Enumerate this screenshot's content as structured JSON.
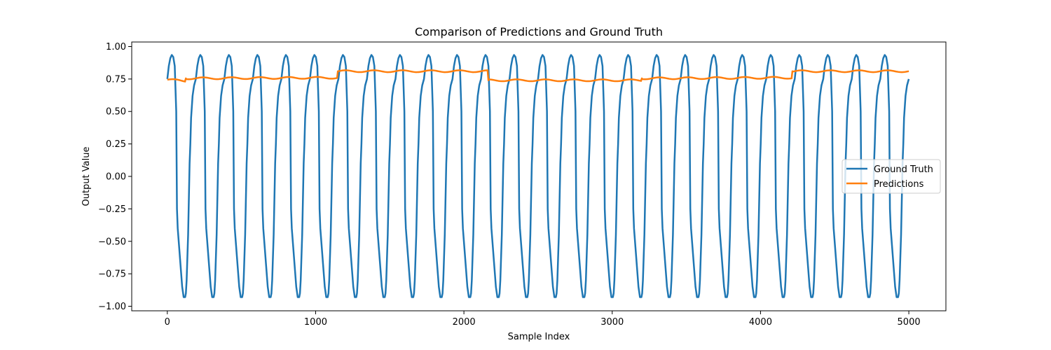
{
  "chart_data": {
    "type": "line",
    "title": "Comparison of Predictions and Ground Truth",
    "xlabel": "Sample Index",
    "ylabel": "Output Value",
    "xlim": [
      -240,
      5250
    ],
    "ylim": [
      -1.035,
      1.035
    ],
    "xticks": [
      0,
      1000,
      2000,
      3000,
      4000,
      5000
    ],
    "xtick_labels": [
      "0",
      "1000",
      "2000",
      "3000",
      "4000",
      "5000"
    ],
    "yticks": [
      -1.0,
      -0.75,
      -0.5,
      -0.25,
      0.0,
      0.25,
      0.5,
      0.75,
      1.0
    ],
    "ytick_labels": [
      "−1.00",
      "−0.75",
      "−0.50",
      "−0.25",
      "0.00",
      "0.25",
      "0.50",
      "0.75",
      "1.00"
    ],
    "grid": false,
    "legend_position": "center-right",
    "series": [
      {
        "name": "Ground Truth",
        "color": "#1f77b4",
        "style": "periodic oscillation, period ~192.3 samples, amplitude ~0.93, sawtooth-like descent",
        "x": [
          0,
          10,
          20,
          30,
          40,
          50,
          60,
          65,
          70,
          80,
          90,
          100,
          110,
          120,
          125,
          130,
          140,
          150,
          155,
          160,
          170,
          180,
          192
        ],
        "values": [
          0.75,
          0.85,
          0.91,
          0.935,
          0.92,
          0.85,
          0.5,
          -0.25,
          -0.4,
          -0.55,
          -0.7,
          -0.85,
          -0.93,
          -0.93,
          -0.9,
          -0.8,
          -0.45,
          0.1,
          0.25,
          0.45,
          0.62,
          0.7,
          0.75
        ],
        "period": 192.3,
        "cycles": 26,
        "x_end": 5000
      },
      {
        "name": "Predictions",
        "color": "#ff7f0e",
        "x": [
          0,
          120,
          125,
          1145,
          1150,
          2160,
          2165,
          3195,
          3200,
          4210,
          4215,
          5000
        ],
        "values": [
          0.745,
          0.735,
          0.755,
          0.76,
          0.81,
          0.81,
          0.74,
          0.74,
          0.755,
          0.76,
          0.81,
          0.81
        ],
        "ripple_amplitude": 0.012
      }
    ]
  }
}
